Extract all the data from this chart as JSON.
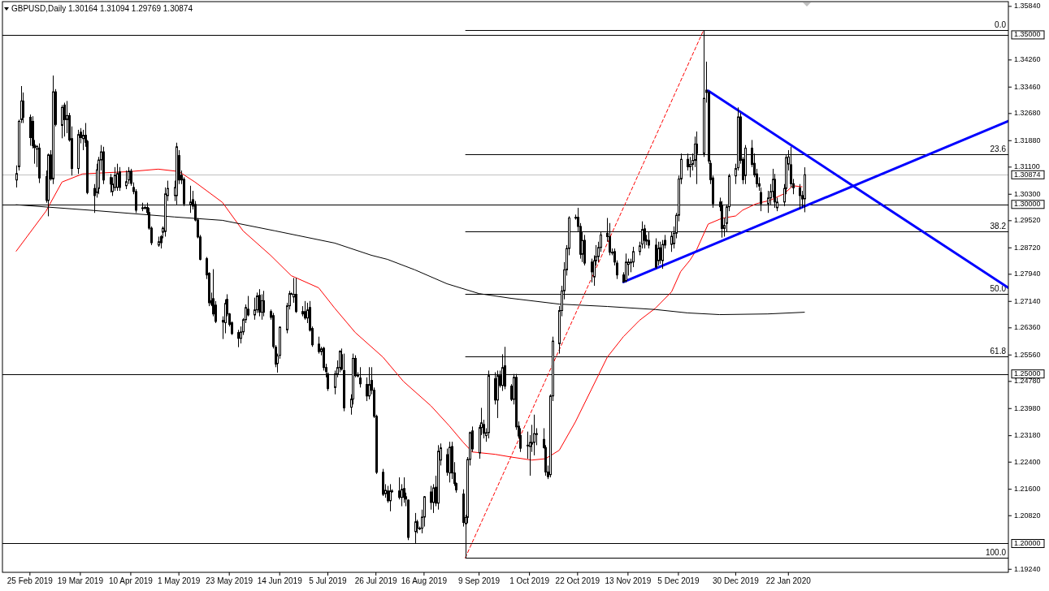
{
  "chart_data": {
    "type": "candlestick",
    "title": "GBPUSD,Daily 1.30164 1.31094 1.29769 1.30874",
    "xlim": [
      "2019-02-13",
      "2020-04-27"
    ],
    "xticks": [
      {
        "value": "2019-02-25",
        "label": "25 Feb 2019"
      },
      {
        "value": "2019-03-19",
        "label": "19 Mar 2019"
      },
      {
        "value": "2019-04-10",
        "label": "10 Apr 2019"
      },
      {
        "value": "2019-05-01",
        "label": "1 May 2019"
      },
      {
        "value": "2019-05-23",
        "label": "23 May 2019"
      },
      {
        "value": "2019-06-14",
        "label": "14 Jun 2019"
      },
      {
        "value": "2019-07-05",
        "label": "5 Jul 2019"
      },
      {
        "value": "2019-07-26",
        "label": "26 Jul 2019"
      },
      {
        "value": "2019-08-16",
        "label": "16 Aug 2019"
      },
      {
        "value": "2019-09-09",
        "label": "9 Sep 2019"
      },
      {
        "value": "2019-10-01",
        "label": "1 Oct 2019"
      },
      {
        "value": "2019-10-22",
        "label": "22 Oct 2019"
      },
      {
        "value": "2019-11-13",
        "label": "13 Nov 2019"
      },
      {
        "value": "2019-12-05",
        "label": "5 Dec 2019"
      },
      {
        "value": "2019-12-30",
        "label": "30 Dec 2019"
      },
      {
        "value": "2020-01-22",
        "label": "22 Jan 2020"
      }
    ],
    "ylim": [
      1.1915,
      1.3598
    ],
    "yticks": [
      {
        "value": 1.3584,
        "label": "1.35840"
      },
      {
        "value": 1.3426,
        "label": "1.34260"
      },
      {
        "value": 1.3346,
        "label": "1.33460"
      },
      {
        "value": 1.3268,
        "label": "1.32680"
      },
      {
        "value": 1.3188,
        "label": "1.31880"
      },
      {
        "value": 1.311,
        "label": "1.31100"
      },
      {
        "value": 1.303,
        "label": "1.30300"
      },
      {
        "value": 1.2952,
        "label": "1.29520"
      },
      {
        "value": 1.2872,
        "label": "1.28720"
      },
      {
        "value": 1.2794,
        "label": "1.27940"
      },
      {
        "value": 1.2714,
        "label": "1.27140"
      },
      {
        "value": 1.2636,
        "label": "1.26360"
      },
      {
        "value": 1.2556,
        "label": "1.25560"
      },
      {
        "value": 1.2478,
        "label": "1.24780"
      },
      {
        "value": 1.2398,
        "label": "1.23980"
      },
      {
        "value": 1.2318,
        "label": "1.23180"
      },
      {
        "value": 1.224,
        "label": "1.22400"
      },
      {
        "value": 1.216,
        "label": "1.21600"
      },
      {
        "value": 1.2082,
        "label": "1.20820"
      },
      {
        "value": 1.1924,
        "label": "1.19240"
      }
    ],
    "annotations": [
      {
        "text": "0.0",
        "y": 1.3514
      },
      {
        "text": "23.6",
        "y": 1.3147
      },
      {
        "text": "38.2",
        "y": 1.292
      },
      {
        "text": "50.0",
        "y": 1.2736
      },
      {
        "text": "61.8",
        "y": 1.2552
      },
      {
        "text": "100.0",
        "y": 1.1958
      }
    ],
    "ref_lines": [
      {
        "axis": "y",
        "value": 1.35,
        "label": "1.35000",
        "color": "#000000"
      },
      {
        "axis": "y",
        "value": 1.3,
        "label": "1.30000",
        "color": "#000000"
      },
      {
        "axis": "y",
        "value": 1.25,
        "label": "1.25000",
        "color": "#000000"
      },
      {
        "axis": "y",
        "value": 1.2,
        "label": "1.20000",
        "color": "#000000"
      },
      {
        "axis": "y",
        "value": 1.30874,
        "label": "1.30874",
        "color": "#c0c0c0"
      },
      {
        "axis": "y",
        "value": 1.3514,
        "color": "#000000"
      },
      {
        "axis": "y",
        "value": 1.3147,
        "color": "#000000"
      },
      {
        "axis": "y",
        "value": 1.292,
        "color": "#000000"
      },
      {
        "axis": "y",
        "value": 1.2736,
        "color": "#000000"
      },
      {
        "axis": "y",
        "value": 1.2552,
        "color": "#000000"
      },
      {
        "axis": "y",
        "value": 1.1958,
        "color": "#000000"
      }
    ],
    "series": [
      {
        "type": "line",
        "color": "#ff0000",
        "x": [
          "2019-02-19",
          "2019-03-04",
          "2019-03-11",
          "2019-03-20",
          "2019-04-10",
          "2019-04-22",
          "2019-05-01",
          "2019-05-08",
          "2019-05-20",
          "2019-05-29",
          "2019-06-10",
          "2019-06-19",
          "2019-07-01",
          "2019-07-08",
          "2019-07-17",
          "2019-07-29",
          "2019-08-07",
          "2019-08-19",
          "2019-08-27",
          "2019-09-02",
          "2019-09-06",
          "2019-09-16",
          "2019-09-23",
          "2019-10-02",
          "2019-10-08",
          "2019-10-14",
          "2019-10-21",
          "2019-10-28",
          "2019-11-04",
          "2019-11-11",
          "2019-11-18",
          "2019-11-25",
          "2019-12-02",
          "2019-12-06",
          "2019-12-10",
          "2019-12-13",
          "2019-12-18",
          "2019-12-24",
          "2019-12-30",
          "2020-01-02",
          "2020-01-08",
          "2020-01-14",
          "2020-01-20",
          "2020-01-24",
          "2020-01-28"
        ],
        "values": [
          1.2862,
          1.298,
          1.3066,
          1.309,
          1.3097,
          1.3104,
          1.3097,
          1.3066,
          1.3006,
          1.2922,
          1.285,
          1.279,
          1.2754,
          1.2694,
          1.2622,
          1.255,
          1.2478,
          1.2406,
          1.2347,
          1.2299,
          1.227,
          1.2263,
          1.2255,
          1.2246,
          1.225,
          1.2275,
          1.2358,
          1.2454,
          1.255,
          1.261,
          1.2658,
          1.2694,
          1.2742,
          1.2802,
          1.2835,
          1.2867,
          1.2942,
          1.2959,
          1.2966,
          1.2983,
          1.3002,
          1.3012,
          1.3031,
          1.3055,
          1.3052
        ]
      },
      {
        "type": "line",
        "color": "#000000",
        "x": [
          "2019-02-19",
          "2019-03-25",
          "2019-04-29",
          "2019-05-20",
          "2019-06-12",
          "2019-07-08",
          "2019-07-24",
          "2019-07-31",
          "2019-08-12",
          "2019-08-26",
          "2019-09-09",
          "2019-09-23",
          "2019-10-14",
          "2019-11-04",
          "2019-11-25",
          "2019-12-09",
          "2019-12-23",
          "2020-01-13",
          "2020-01-29"
        ],
        "values": [
          1.2999,
          1.2982,
          1.2963,
          1.2953,
          1.2922,
          1.2886,
          1.285,
          1.2838,
          1.2807,
          1.2766,
          1.2737,
          1.2723,
          1.2706,
          1.2699,
          1.269,
          1.268,
          1.2675,
          1.2677,
          1.2682
        ]
      },
      {
        "type": "line",
        "color": "#ff0000",
        "line_style": "dashed",
        "x": [
          "2019-09-03",
          "2019-12-16"
        ],
        "values": [
          1.1958,
          1.3514
        ]
      },
      {
        "type": "line",
        "color": "#0000ff",
        "x": [
          "2019-11-11",
          "2020-04-27"
        ],
        "values": [
          1.2771,
          1.3246
        ]
      },
      {
        "type": "line",
        "color": "#0000ff",
        "x": [
          "2019-12-18",
          "2020-04-27"
        ],
        "values": [
          1.3335,
          1.2754
        ]
      },
      {
        "color": "#000000",
        "x": [
          "2019-02-19",
          "2019-02-20",
          "2019-02-21",
          "2019-02-22",
          "2019-02-25",
          "2019-02-26",
          "2019-02-27",
          "2019-02-28",
          "2019-03-01",
          "2019-03-04",
          "2019-03-05",
          "2019-03-06",
          "2019-03-07",
          "2019-03-08",
          "2019-03-11",
          "2019-03-12",
          "2019-03-13",
          "2019-03-14",
          "2019-03-15",
          "2019-03-18",
          "2019-03-19",
          "2019-03-20",
          "2019-03-21",
          "2019-03-22",
          "2019-03-25",
          "2019-03-26",
          "2019-03-27",
          "2019-03-28",
          "2019-03-29",
          "2019-04-01",
          "2019-04-02",
          "2019-04-03",
          "2019-04-04",
          "2019-04-05",
          "2019-04-08",
          "2019-04-09",
          "2019-04-10",
          "2019-04-11",
          "2019-04-12",
          "2019-04-15",
          "2019-04-16",
          "2019-04-17",
          "2019-04-18",
          "2019-04-19",
          "2019-04-22",
          "2019-04-23",
          "2019-04-24",
          "2019-04-25",
          "2019-04-26",
          "2019-04-29",
          "2019-04-30",
          "2019-05-01",
          "2019-05-02",
          "2019-05-03",
          "2019-05-06",
          "2019-05-07",
          "2019-05-08",
          "2019-05-09",
          "2019-05-10",
          "2019-05-13",
          "2019-05-14",
          "2019-05-15",
          "2019-05-16",
          "2019-05-17",
          "2019-05-20",
          "2019-05-21",
          "2019-05-22",
          "2019-05-23",
          "2019-05-24",
          "2019-05-27",
          "2019-05-28",
          "2019-05-29",
          "2019-05-30",
          "2019-05-31",
          "2019-06-03",
          "2019-06-04",
          "2019-06-05",
          "2019-06-06",
          "2019-06-07",
          "2019-06-10",
          "2019-06-11",
          "2019-06-12",
          "2019-06-13",
          "2019-06-14",
          "2019-06-17",
          "2019-06-18",
          "2019-06-19",
          "2019-06-20",
          "2019-06-21",
          "2019-06-24",
          "2019-06-25",
          "2019-06-26",
          "2019-06-27",
          "2019-06-28",
          "2019-07-01",
          "2019-07-02",
          "2019-07-03",
          "2019-07-04",
          "2019-07-05",
          "2019-07-08",
          "2019-07-09",
          "2019-07-10",
          "2019-07-11",
          "2019-07-12",
          "2019-07-15",
          "2019-07-16",
          "2019-07-17",
          "2019-07-18",
          "2019-07-19",
          "2019-07-22",
          "2019-07-23",
          "2019-07-24",
          "2019-07-25",
          "2019-07-26",
          "2019-07-29",
          "2019-07-30",
          "2019-07-31",
          "2019-08-01",
          "2019-08-02",
          "2019-08-05",
          "2019-08-06",
          "2019-08-07",
          "2019-08-08",
          "2019-08-09",
          "2019-08-12",
          "2019-08-13",
          "2019-08-14",
          "2019-08-15",
          "2019-08-16",
          "2019-08-19",
          "2019-08-20",
          "2019-08-21",
          "2019-08-22",
          "2019-08-23",
          "2019-08-26",
          "2019-08-27",
          "2019-08-28",
          "2019-08-29",
          "2019-08-30",
          "2019-09-02",
          "2019-09-03",
          "2019-09-04",
          "2019-09-05",
          "2019-09-06",
          "2019-09-09",
          "2019-09-10",
          "2019-09-11",
          "2019-09-12",
          "2019-09-13",
          "2019-09-16",
          "2019-09-17",
          "2019-09-18",
          "2019-09-19",
          "2019-09-20",
          "2019-09-23",
          "2019-09-24",
          "2019-09-25",
          "2019-09-26",
          "2019-09-27",
          "2019-09-30",
          "2019-10-01",
          "2019-10-02",
          "2019-10-03",
          "2019-10-04",
          "2019-10-07",
          "2019-10-08",
          "2019-10-09",
          "2019-10-10",
          "2019-10-11",
          "2019-10-14",
          "2019-10-15",
          "2019-10-16",
          "2019-10-17",
          "2019-10-18",
          "2019-10-21",
          "2019-10-22",
          "2019-10-23",
          "2019-10-24",
          "2019-10-25",
          "2019-10-28",
          "2019-10-29",
          "2019-10-30",
          "2019-10-31",
          "2019-11-01",
          "2019-11-04",
          "2019-11-05",
          "2019-11-06",
          "2019-11-07",
          "2019-11-08",
          "2019-11-11",
          "2019-11-12",
          "2019-11-13",
          "2019-11-14",
          "2019-11-15",
          "2019-11-18",
          "2019-11-19",
          "2019-11-20",
          "2019-11-21",
          "2019-11-22",
          "2019-11-25",
          "2019-11-26",
          "2019-11-27",
          "2019-11-28",
          "2019-11-29",
          "2019-12-02",
          "2019-12-03",
          "2019-12-04",
          "2019-12-05",
          "2019-12-06",
          "2019-12-09",
          "2019-12-10",
          "2019-12-11",
          "2019-12-12",
          "2019-12-13",
          "2019-12-16",
          "2019-12-17",
          "2019-12-18",
          "2019-12-19",
          "2019-12-20",
          "2019-12-23",
          "2019-12-24",
          "2019-12-25",
          "2019-12-26",
          "2019-12-27",
          "2019-12-30",
          "2019-12-31",
          "2020-01-01",
          "2020-01-02",
          "2020-01-03",
          "2020-01-06",
          "2020-01-07",
          "2020-01-08",
          "2020-01-09",
          "2020-01-10",
          "2020-01-13",
          "2020-01-14",
          "2020-01-15",
          "2020-01-16",
          "2020-01-17",
          "2020-01-20",
          "2020-01-21",
          "2020-01-22",
          "2020-01-23",
          "2020-01-24",
          "2020-01-27",
          "2020-01-28",
          "2020-01-29"
        ],
        "ohlc": [
          [
            1.3072,
            1.3115,
            1.305,
            1.3091
          ],
          [
            1.3111,
            1.325,
            1.31,
            1.3245
          ],
          [
            1.325,
            1.3349,
            1.324,
            1.3305
          ],
          [
            1.3305,
            1.333,
            1.324,
            1.3257
          ],
          [
            1.3257,
            1.3265,
            1.3173,
            1.3197
          ],
          [
            1.3245,
            1.326,
            1.3165,
            1.3173
          ],
          [
            1.3175,
            1.319,
            1.312,
            1.3168
          ],
          [
            1.3163,
            1.3175,
            1.311,
            1.3171
          ],
          [
            1.3166,
            1.318,
            1.3063,
            1.3078
          ],
          [
            1.3082,
            1.31,
            1.3005,
            1.3012
          ],
          [
            1.3012,
            1.315,
            1.2965,
            1.3146
          ],
          [
            1.3146,
            1.316,
            1.307,
            1.3075
          ],
          [
            1.3075,
            1.338,
            1.306,
            1.3332
          ],
          [
            1.3332,
            1.334,
            1.323,
            1.3236
          ],
          [
            1.3233,
            1.3293,
            1.3195,
            1.3286
          ],
          [
            1.3293,
            1.33,
            1.32,
            1.325
          ],
          [
            1.325,
            1.3305,
            1.321,
            1.3262
          ],
          [
            1.3262,
            1.327,
            1.3185,
            1.319
          ],
          [
            1.3194,
            1.323,
            1.3085,
            1.3106
          ],
          [
            1.3106,
            1.322,
            1.309,
            1.3206
          ],
          [
            1.3213,
            1.3225,
            1.318,
            1.3197
          ],
          [
            1.3194,
            1.322,
            1.316,
            1.3204
          ],
          [
            1.3204,
            1.324,
            1.317,
            1.3183
          ],
          [
            1.3186,
            1.319,
            1.303,
            1.3035
          ],
          [
            1.3047,
            1.306,
            1.2975,
            1.3026
          ],
          [
            1.3035,
            1.312,
            1.302,
            1.3102
          ],
          [
            1.3047,
            1.314,
            1.303,
            1.3131
          ],
          [
            1.3131,
            1.3175,
            1.31,
            1.3155
          ],
          [
            1.3155,
            1.317,
            1.306,
            1.3072
          ],
          [
            1.3079,
            1.309,
            1.3035,
            1.306
          ],
          [
            1.3038,
            1.308,
            1.3025,
            1.306
          ],
          [
            1.305,
            1.311,
            1.304,
            1.3086
          ],
          [
            1.305,
            1.312,
            1.304,
            1.3091
          ],
          [
            1.3096,
            1.311,
            1.304,
            1.305
          ],
          [
            1.3055,
            1.31,
            1.3045,
            1.3067
          ],
          [
            1.3072,
            1.311,
            1.306,
            1.3098
          ],
          [
            1.3098,
            1.3105,
            1.3055,
            1.3062
          ],
          [
            1.305,
            1.3065,
            1.303,
            1.3038
          ],
          [
            1.3038,
            1.3045,
            1.2975,
            1.2983
          ],
          [
            1.299,
            1.3005,
            1.298,
            1.2988
          ],
          [
            1.299,
            1.2996,
            1.2985,
            1.2991
          ],
          [
            1.2991,
            1.3005,
            1.297,
            1.2976
          ],
          [
            1.2976,
            1.299,
            1.2925,
            1.293
          ],
          [
            1.293,
            1.2935,
            1.288,
            1.2887
          ],
          [
            1.288,
            1.2905,
            1.2875,
            1.289
          ],
          [
            1.2905,
            1.291,
            1.287,
            1.2887
          ],
          [
            1.2918,
            1.2935,
            1.29,
            1.293
          ],
          [
            1.292,
            1.305,
            1.2905,
            1.3031
          ],
          [
            1.3026,
            1.307,
            1.301,
            1.3047
          ],
          [
            1.3026,
            1.307,
            1.301,
            1.305
          ],
          [
            1.3026,
            1.3182,
            1.3,
            1.317
          ],
          [
            1.3144,
            1.316,
            1.306,
            1.3072
          ],
          [
            1.3086,
            1.31,
            1.306,
            1.3072
          ],
          [
            1.3074,
            1.308,
            1.2995,
            1.3002
          ],
          [
            1.3,
            1.3055,
            1.2975,
            1.3007
          ],
          [
            1.3014,
            1.304,
            1.2985,
            1.2995
          ],
          [
            1.3,
            1.301,
            1.295,
            1.2954
          ],
          [
            1.2954,
            1.296,
            1.29,
            1.2904
          ],
          [
            1.2904,
            1.291,
            1.2835,
            1.2838
          ],
          [
            1.284,
            1.2845,
            1.278,
            1.2792
          ],
          [
            1.2797,
            1.28,
            1.27,
            1.271
          ],
          [
            1.2716,
            1.274,
            1.27,
            1.2705
          ],
          [
            1.2722,
            1.2809,
            1.267,
            1.2677
          ],
          [
            1.2703,
            1.2715,
            1.265,
            1.2655
          ],
          [
            1.2653,
            1.267,
            1.2603,
            1.2658
          ],
          [
            1.2651,
            1.272,
            1.262,
            1.2708
          ],
          [
            1.272,
            1.2735,
            1.267,
            1.2677
          ],
          [
            1.2677,
            1.268,
            1.264,
            1.2646
          ],
          [
            1.2651,
            1.2655,
            1.2615,
            1.2619
          ],
          [
            1.2622,
            1.263,
            1.2579,
            1.2605
          ],
          [
            1.2605,
            1.264,
            1.259,
            1.2624
          ],
          [
            1.2624,
            1.2665,
            1.2615,
            1.266
          ],
          [
            1.266,
            1.2705,
            1.265,
            1.2696
          ],
          [
            1.2691,
            1.273,
            1.267,
            1.2674
          ],
          [
            1.2674,
            1.2725,
            1.266,
            1.2689
          ],
          [
            1.2689,
            1.274,
            1.268,
            1.273
          ],
          [
            1.2732,
            1.275,
            1.267,
            1.2682
          ],
          [
            1.2682,
            1.2735,
            1.266,
            1.2716
          ],
          [
            1.2716,
            1.2745,
            1.267,
            1.2682
          ],
          [
            1.2684,
            1.269,
            1.266,
            1.2667
          ],
          [
            1.2672,
            1.268,
            1.2575,
            1.2581
          ],
          [
            1.2579,
            1.2585,
            1.252,
            1.2529
          ],
          [
            1.2531,
            1.256,
            1.2504,
            1.2553
          ],
          [
            1.2555,
            1.264,
            1.2545,
            1.2638
          ],
          [
            1.263,
            1.271,
            1.262,
            1.2701
          ],
          [
            1.2701,
            1.2745,
            1.269,
            1.2737
          ],
          [
            1.2737,
            1.274,
            1.2735,
            1.2737
          ],
          [
            1.2727,
            1.2783,
            1.271,
            1.2735
          ],
          [
            1.2735,
            1.2783,
            1.268,
            1.2684
          ],
          [
            1.2684,
            1.27,
            1.267,
            1.2677
          ],
          [
            1.2684,
            1.2715,
            1.266,
            1.2665
          ],
          [
            1.2665,
            1.271,
            1.265,
            1.2689
          ],
          [
            1.2696,
            1.2715,
            1.2625,
            1.2629
          ],
          [
            1.2634,
            1.264,
            1.258,
            1.2586
          ],
          [
            1.2588,
            1.261,
            1.256,
            1.2566
          ],
          [
            1.2566,
            1.258,
            1.2555,
            1.2574
          ],
          [
            1.2576,
            1.258,
            1.251,
            1.2519
          ],
          [
            1.2519,
            1.253,
            1.249,
            1.2507
          ],
          [
            1.25,
            1.2505,
            1.245,
            1.2457
          ],
          [
            1.246,
            1.251,
            1.244,
            1.25
          ],
          [
            1.25,
            1.254,
            1.249,
            1.2519
          ],
          [
            1.2519,
            1.257,
            1.2505,
            1.2567
          ],
          [
            1.2557,
            1.2575,
            1.251,
            1.2514
          ],
          [
            1.251,
            1.256,
            1.239,
            1.24
          ],
          [
            1.2402,
            1.244,
            1.238,
            1.2426
          ],
          [
            1.2426,
            1.256,
            1.241,
            1.2546
          ],
          [
            1.2546,
            1.2555,
            1.249,
            1.2495
          ],
          [
            1.2495,
            1.2505,
            1.249,
            1.2496
          ],
          [
            1.2488,
            1.252,
            1.246,
            1.2471
          ],
          [
            1.2469,
            1.249,
            1.242,
            1.2435
          ],
          [
            1.2435,
            1.252,
            1.2425,
            1.2469
          ],
          [
            1.2481,
            1.252,
            1.244,
            1.2452
          ],
          [
            1.2452,
            1.246,
            1.237,
            1.2375
          ],
          [
            1.2375,
            1.238,
            1.2205,
            1.221
          ],
          [
            1.221,
            1.222,
            1.214,
            1.2145
          ],
          [
            1.2147,
            1.2175,
            1.2135,
            1.2157
          ],
          [
            1.2155,
            1.217,
            1.212,
            1.2126
          ],
          [
            1.2126,
            1.2175,
            1.2095,
            1.2155
          ],
          [
            1.2155,
            1.216,
            1.215,
            1.2155
          ],
          [
            1.2155,
            1.2195,
            1.213,
            1.2136
          ],
          [
            1.2136,
            1.2175,
            1.211,
            1.216
          ],
          [
            1.2162,
            1.2195,
            1.212,
            1.2136
          ],
          [
            1.2138,
            1.215,
            1.211,
            1.2131
          ],
          [
            1.2128,
            1.213,
            1.201,
            1.2018
          ],
          [
            1.2035,
            1.209,
            1.2,
            1.2064
          ],
          [
            1.2064,
            1.207,
            1.203,
            1.2045
          ],
          [
            1.2045,
            1.205,
            1.204,
            1.2045
          ],
          [
            1.2045,
            1.21,
            1.203,
            1.2078
          ],
          [
            1.2078,
            1.214,
            1.205,
            1.2138
          ],
          [
            1.2152,
            1.217,
            1.21,
            1.2121
          ],
          [
            1.2121,
            1.2175,
            1.209,
            1.2164
          ],
          [
            1.2166,
            1.22,
            1.211,
            1.2119
          ],
          [
            1.2119,
            1.229,
            1.21,
            1.2272
          ],
          [
            1.2246,
            1.2295,
            1.223,
            1.2282
          ],
          [
            1.2262,
            1.228,
            1.22,
            1.221
          ],
          [
            1.2208,
            1.23,
            1.218,
            1.2284
          ],
          [
            1.2286,
            1.23,
            1.219,
            1.2208
          ],
          [
            1.2208,
            1.224,
            1.217,
            1.2177
          ],
          [
            1.2177,
            1.218,
            1.215,
            1.2158
          ],
          [
            1.2146,
            1.216,
            1.205,
            1.2062
          ],
          [
            1.2058,
            1.2085,
            1.1958,
            1.2077
          ],
          [
            1.2077,
            1.2255,
            1.206,
            1.2248
          ],
          [
            1.2248,
            1.233,
            1.223,
            1.2327
          ],
          [
            1.2332,
            1.2345,
            1.227,
            1.2279
          ],
          [
            1.2267,
            1.235,
            1.225,
            1.2342
          ],
          [
            1.2342,
            1.24,
            1.232,
            1.2356
          ],
          [
            1.2351,
            1.2365,
            1.231,
            1.2325
          ],
          [
            1.2318,
            1.234,
            1.23,
            1.2327
          ],
          [
            1.2327,
            1.251,
            1.231,
            1.2495
          ],
          [
            1.2486,
            1.2505,
            1.241,
            1.2423
          ],
          [
            1.2423,
            1.251,
            1.237,
            1.2495
          ],
          [
            1.2495,
            1.251,
            1.246,
            1.2466
          ],
          [
            1.2466,
            1.2558,
            1.245,
            1.2519
          ],
          [
            1.2524,
            1.258,
            1.2455,
            1.2464
          ],
          [
            1.2464,
            1.247,
            1.242,
            1.2425
          ],
          [
            1.2425,
            1.25,
            1.241,
            1.249
          ],
          [
            1.249,
            1.25,
            1.2335,
            1.2344
          ],
          [
            1.2346,
            1.236,
            1.231,
            1.2317
          ],
          [
            1.2319,
            1.234,
            1.227,
            1.2281
          ],
          [
            1.229,
            1.233,
            1.225,
            1.229
          ],
          [
            1.2286,
            1.232,
            1.22,
            1.2298
          ],
          [
            1.2298,
            1.235,
            1.227,
            1.2293
          ],
          [
            1.2298,
            1.238,
            1.226,
            1.2324
          ],
          [
            1.2324,
            1.234,
            1.229,
            1.2324
          ],
          [
            1.2307,
            1.234,
            1.228,
            1.2283
          ],
          [
            1.2283,
            1.229,
            1.22,
            1.2211
          ],
          [
            1.2211,
            1.223,
            1.219,
            1.2197
          ],
          [
            1.2203,
            1.244,
            1.2195,
            1.2435
          ],
          [
            1.2435,
            1.261,
            1.242,
            1.2597
          ],
          [
            1.2589,
            1.27,
            1.256,
            1.2687
          ],
          [
            1.2687,
            1.276,
            1.267,
            1.2745
          ],
          [
            1.2745,
            1.283,
            1.272,
            1.2807
          ],
          [
            1.2807,
            1.288,
            1.279,
            1.287
          ],
          [
            1.287,
            1.2965,
            1.285,
            1.296
          ],
          [
            1.2962,
            1.297,
            1.2955,
            1.2962
          ],
          [
            1.2962,
            1.299,
            1.292,
            1.2935
          ],
          [
            1.2935,
            1.2945,
            1.284,
            1.2853
          ],
          [
            1.2853,
            1.292,
            1.283,
            1.2894
          ],
          [
            1.2894,
            1.291,
            1.282,
            1.2827
          ],
          [
            1.283,
            1.284,
            1.277,
            1.2801
          ],
          [
            1.2786,
            1.285,
            1.276,
            1.2834
          ],
          [
            1.2834,
            1.288,
            1.282,
            1.2846
          ],
          [
            1.2846,
            1.289,
            1.283,
            1.2873
          ],
          [
            1.2873,
            1.292,
            1.286,
            1.291
          ],
          [
            1.2915,
            1.296,
            1.289,
            1.2905
          ],
          [
            1.2905,
            1.2945,
            1.285,
            1.2859
          ],
          [
            1.2859,
            1.287,
            1.285,
            1.2859
          ],
          [
            1.2861,
            1.287,
            1.282,
            1.283
          ],
          [
            1.2827,
            1.2835,
            1.278,
            1.2792
          ],
          [
            1.2792,
            1.28,
            1.2771,
            1.2771
          ],
          [
            1.2775,
            1.2855,
            1.277,
            1.283
          ],
          [
            1.2823,
            1.284,
            1.279,
            1.283
          ],
          [
            1.283,
            1.284,
            1.28,
            1.283
          ],
          [
            1.283,
            1.2875,
            1.2815,
            1.2861
          ],
          [
            1.2861,
            1.289,
            1.285,
            1.2878
          ],
          [
            1.2883,
            1.295,
            1.287,
            1.2926
          ],
          [
            1.2928,
            1.294,
            1.287,
            1.2894
          ],
          [
            1.2896,
            1.291,
            1.288,
            1.2892
          ],
          [
            1.2894,
            1.292,
            1.287,
            1.288
          ],
          [
            1.288,
            1.29,
            1.281,
            1.2815
          ],
          [
            1.2834,
            1.289,
            1.282,
            1.287
          ],
          [
            1.2872,
            1.289,
            1.2825,
            1.2836
          ],
          [
            1.2834,
            1.2895,
            1.281,
            1.2882
          ],
          [
            1.2894,
            1.291,
            1.287,
            1.288
          ],
          [
            1.2882,
            1.292,
            1.286,
            1.2906
          ],
          [
            1.2884,
            1.2935,
            1.287,
            1.2915
          ],
          [
            1.2915,
            1.2975,
            1.29,
            1.2968
          ],
          [
            1.2968,
            1.3085,
            1.295,
            1.3075
          ],
          [
            1.3075,
            1.315,
            1.306,
            1.3133
          ],
          [
            1.3133,
            1.315,
            1.31,
            1.3111
          ],
          [
            1.3111,
            1.314,
            1.308,
            1.3118
          ],
          [
            1.3118,
            1.315,
            1.31,
            1.313
          ],
          [
            1.313,
            1.32,
            1.311,
            1.3178
          ],
          [
            1.3178,
            1.3215,
            1.306,
            1.315
          ],
          [
            1.315,
            1.3514,
            1.314,
            1.3313
          ],
          [
            1.3337,
            1.3421,
            1.33,
            1.333
          ],
          [
            1.333,
            1.3335,
            1.312,
            1.3128
          ],
          [
            1.3121,
            1.313,
            1.306,
            1.3073
          ],
          [
            1.3078,
            1.3085,
            1.299,
            1.3002
          ],
          [
            1.3007,
            1.302,
            1.298,
            1.2993
          ],
          [
            1.2998,
            1.301,
            1.2902,
            1.2929
          ],
          [
            1.2929,
            1.296,
            1.2905,
            1.2938
          ],
          [
            1.2944,
            1.3,
            1.292,
            1.2993
          ],
          [
            1.2993,
            1.309,
            1.298,
            1.3084
          ],
          [
            1.3084,
            1.312,
            1.306,
            1.3106
          ],
          [
            1.3108,
            1.3286,
            1.31,
            1.3258
          ],
          [
            1.3258,
            1.327,
            1.312,
            1.313
          ],
          [
            1.3133,
            1.314,
            1.306,
            1.3073
          ],
          [
            1.3085,
            1.3175,
            1.306,
            1.3166
          ],
          [
            1.3166,
            1.319,
            1.311,
            1.3118
          ],
          [
            1.3121,
            1.315,
            1.308,
            1.3087
          ],
          [
            1.309,
            1.3105,
            1.305,
            1.3061
          ],
          [
            1.3061,
            1.308,
            1.304,
            1.3054
          ],
          [
            1.3035,
            1.305,
            1.298,
            1.3002
          ],
          [
            1.3002,
            1.304,
            1.2975,
            1.3019
          ],
          [
            1.3019,
            1.306,
            1.3,
            1.3038
          ],
          [
            1.3038,
            1.3105,
            1.302,
            1.3074
          ],
          [
            1.3074,
            1.309,
            1.299,
            1.3007
          ],
          [
            1.299,
            1.302,
            1.298,
            1.3007
          ],
          [
            1.3007,
            1.306,
            1.2995,
            1.3047
          ],
          [
            1.3047,
            1.3145,
            1.303,
            1.3138
          ],
          [
            1.3119,
            1.316,
            1.31,
            1.314
          ],
          [
            1.3117,
            1.317,
            1.305,
            1.3061
          ],
          [
            1.3061,
            1.3075,
            1.303,
            1.3049
          ],
          [
            1.3049,
            1.306,
            1.2985,
            1.3026
          ],
          [
            1.3026,
            1.304,
            1.299,
            1.3016
          ],
          [
            1.30164,
            1.31094,
            1.29769,
            1.30874
          ]
        ]
      }
    ]
  }
}
